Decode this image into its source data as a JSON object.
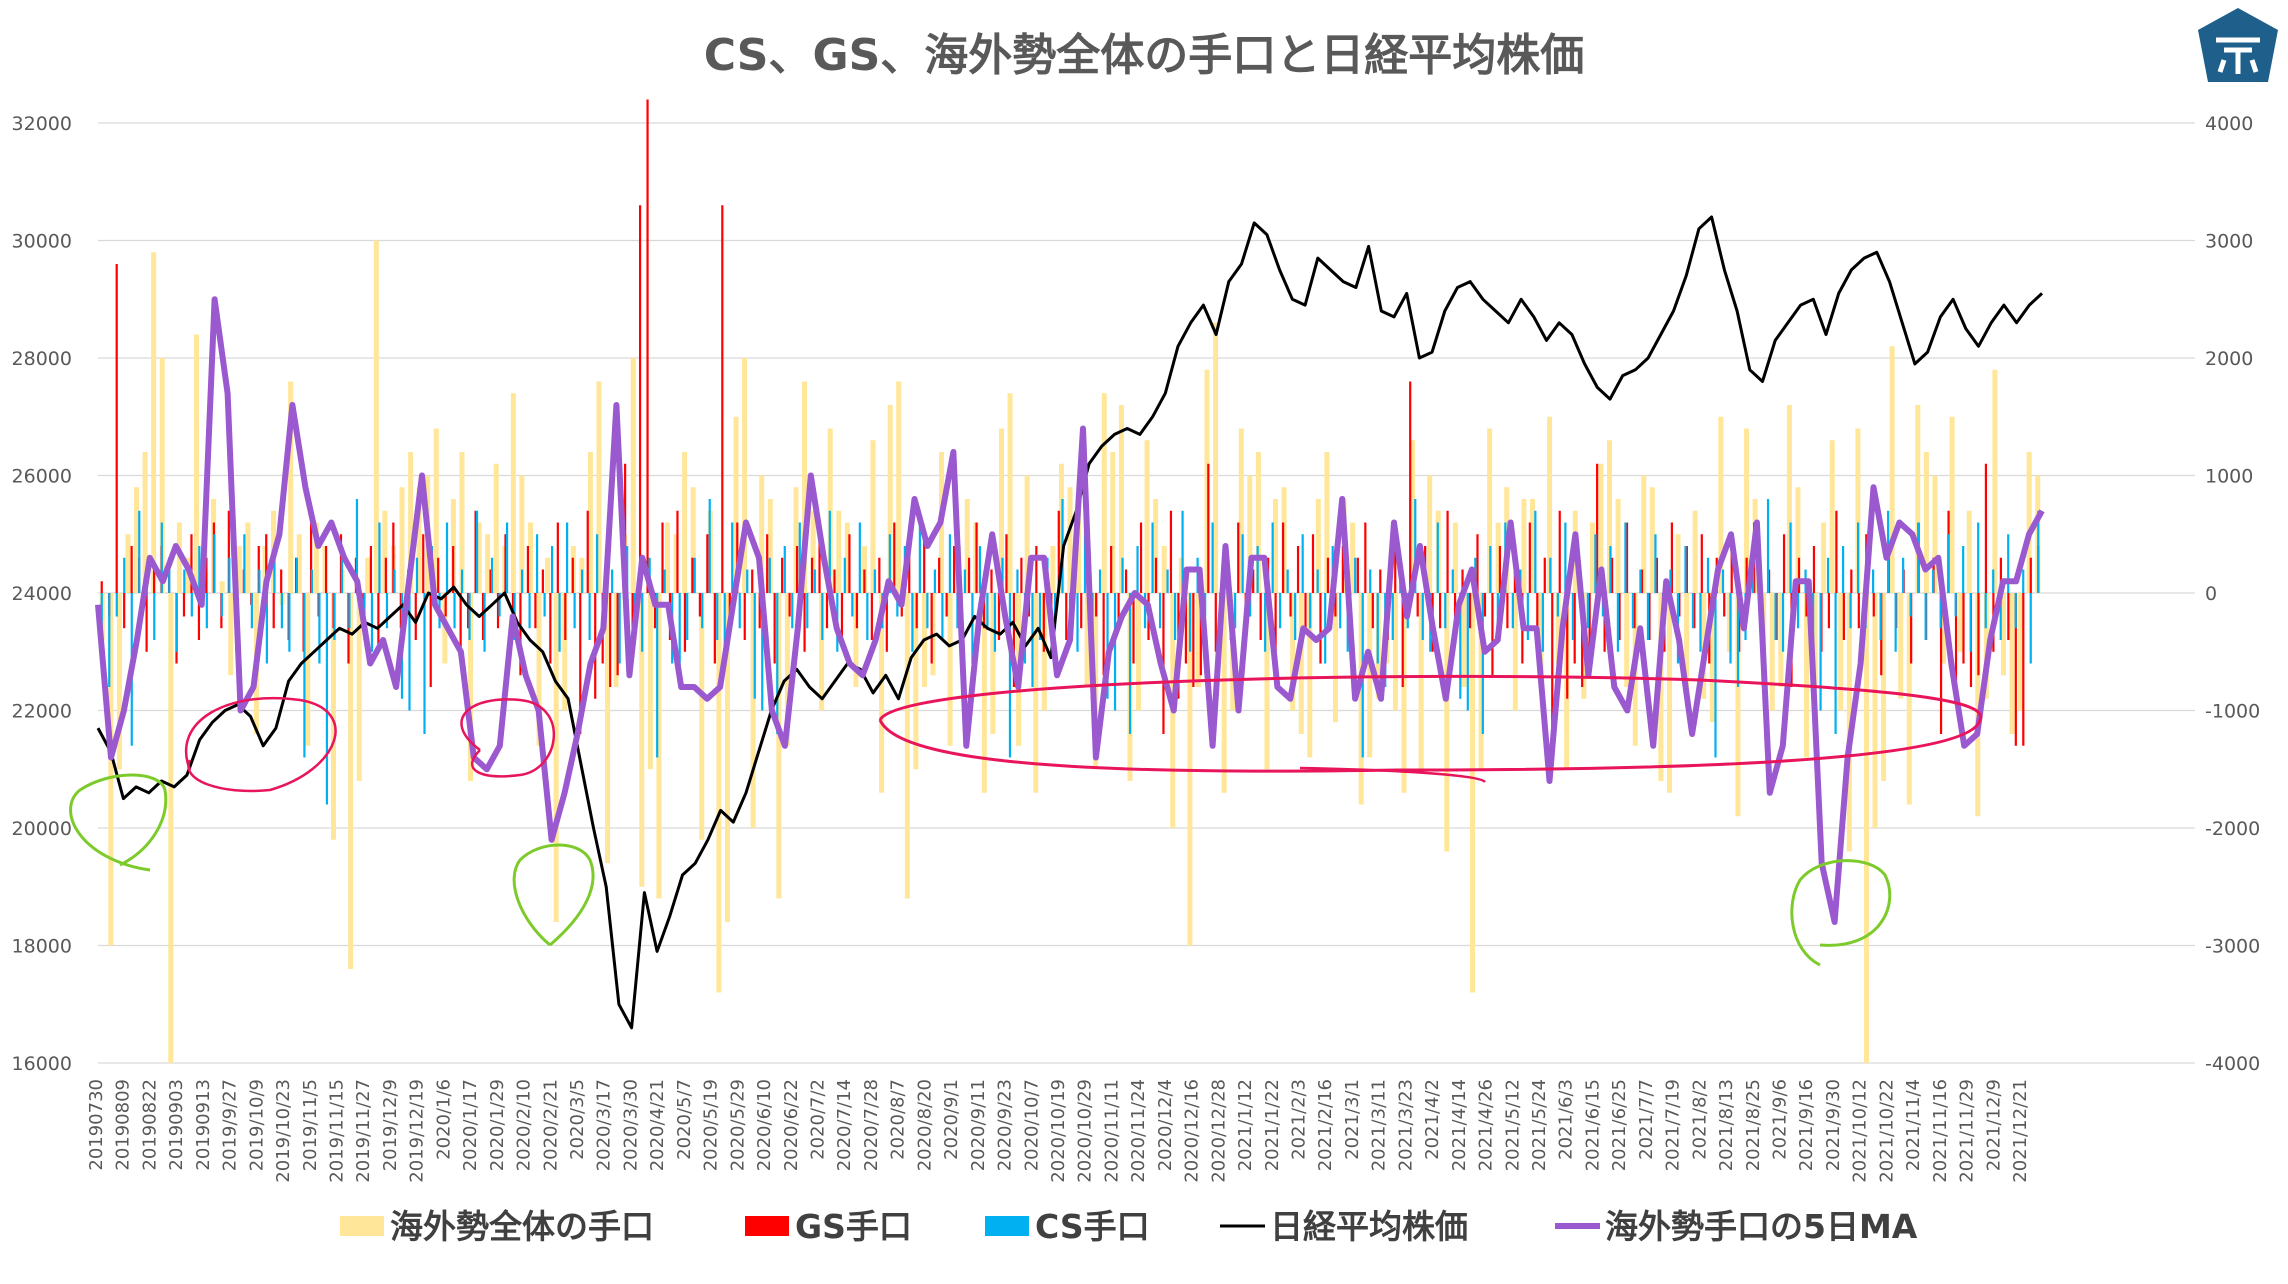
{
  "chart_data": {
    "type": "bar+line",
    "title": "CS、GS、海外勢全体の手口と日経平均株価",
    "y_left": {
      "min": 16000,
      "max": 32000,
      "ticks": [
        16000,
        18000,
        20000,
        22000,
        24000,
        26000,
        28000,
        30000,
        32000
      ]
    },
    "y_right": {
      "min": -4000,
      "max": 4000,
      "ticks": [
        -4000,
        -3000,
        -2000,
        -1000,
        0,
        1000,
        2000,
        3000,
        4000
      ]
    },
    "x_tick_labels": [
      "20190730",
      "20190809",
      "20190822",
      "20190903",
      "20190913",
      "2019/9/27",
      "2019/10/9",
      "2019/10/23",
      "2019/11/5",
      "2019/11/15",
      "2019/11/27",
      "2019/12/9",
      "2019/12/19",
      "2020/1/6",
      "2020/1/17",
      "2020/1/29",
      "2020/2/10",
      "2020/2/21",
      "2020/3/5",
      "2020/3/17",
      "2020/3/30",
      "2020/4/21",
      "2020/5/7",
      "2020/5/19",
      "2020/5/29",
      "2020/6/10",
      "2020/6/22",
      "2020/7/2",
      "2020/7/14",
      "2020/7/28",
      "2020/8/7",
      "2020/8/20",
      "2020/9/1",
      "2020/9/11",
      "2020/9/23",
      "2020/10/7",
      "2020/10/19",
      "2020/10/29",
      "2020/11/11",
      "2020/11/24",
      "2020/12/4",
      "2020/12/16",
      "2020/12/28",
      "2021/1/12",
      "2021/1/22",
      "2021/2/3",
      "2021/2/16",
      "2021/3/1",
      "2021/3/11",
      "2021/3/23",
      "2021/4/2",
      "2021/4/14",
      "2021/4/26",
      "2021/5/12",
      "2021/5/24",
      "2021/6/3",
      "2021/6/15",
      "2021/6/25",
      "2021/7/7",
      "2021/7/19",
      "2021/8/2",
      "2021/8/13",
      "2021/8/25",
      "2021/9/6",
      "2021/9/16",
      "2021/9/30",
      "2021/10/12",
      "2021/10/22",
      "2021/11/4",
      "2021/11/16",
      "2021/11/29",
      "2021/12/9",
      "2021/12/21"
    ],
    "series": [
      {
        "name": "海外勢全体の手口",
        "color": "#FFE699",
        "type": "bar",
        "axis": "right",
        "values": [
          -400,
          -3000,
          -1500,
          500,
          900,
          1200,
          2900,
          2000,
          -4000,
          600,
          300,
          2200,
          700,
          800,
          100,
          -700,
          400,
          600,
          -1200,
          400,
          700,
          -100,
          1800,
          500,
          -1300,
          600,
          400,
          -2100,
          200,
          -3200,
          -1600,
          300,
          3000,
          700,
          400,
          900,
          1200,
          900,
          1000,
          1400,
          -600,
          800,
          1200,
          -1600,
          600,
          500,
          1100,
          400,
          1700,
          1000,
          600,
          -1300,
          300,
          -2800,
          -1000,
          400,
          300,
          1200,
          1800,
          -2300,
          -800,
          500,
          2000,
          -2500,
          -1500,
          -2600,
          600,
          500,
          1200,
          900,
          -2100,
          700,
          -3400,
          -2800,
          1500,
          2000,
          -2000,
          1000,
          800,
          -2600,
          -1300,
          900,
          1800,
          700,
          -1000,
          1400,
          700,
          600,
          -800,
          400,
          1300,
          -1700,
          1600,
          1800,
          -2600,
          -1500,
          -800,
          -700,
          1200,
          -1300,
          400,
          800,
          600,
          -1700,
          -1200,
          1400,
          1700,
          -1300,
          1000,
          -1700,
          -1000,
          400,
          1100,
          900,
          700,
          -800,
          -1500,
          1700,
          1200,
          1600,
          -1600,
          -1000,
          1300,
          800,
          400,
          -2000,
          300,
          -3000,
          -800,
          1900,
          2300,
          -1700,
          -1000,
          1400,
          1000,
          1200,
          -1500,
          800,
          900,
          -1000,
          -1200,
          -1400,
          800,
          1200,
          -1100,
          800,
          600,
          -1800,
          -1400,
          -900,
          -600,
          -1000,
          -1700,
          1300,
          -1500,
          1000,
          700,
          -2200,
          600,
          -800,
          -3400,
          -1500,
          1400,
          600,
          900,
          -1000,
          800,
          800,
          -700,
          1500,
          -600,
          -1500,
          700,
          -900,
          600,
          1100,
          1300,
          800,
          -800,
          -1300,
          1000,
          900,
          -1600,
          -1700,
          500,
          -900,
          700,
          -900,
          -1100,
          1500,
          -500,
          -1900,
          1400,
          800,
          -800,
          -1000,
          -800,
          1600,
          900,
          -1400,
          -800,
          600,
          1300,
          -1000,
          -2200,
          1400,
          -4000,
          -2000,
          -1600,
          2100,
          -900,
          -1800,
          1600,
          1200,
          1000,
          -600,
          1500,
          -500,
          700,
          -1900,
          -900,
          1900,
          -700,
          -1200,
          -1000,
          1200,
          1000
        ]
      },
      {
        "name": "GS手口",
        "color": "#FF0000",
        "type": "bar",
        "axis": "right",
        "values": [
          100,
          -200,
          2800,
          -300,
          400,
          300,
          -500,
          200,
          400,
          300,
          -600,
          -200,
          500,
          -400,
          300,
          600,
          -300,
          700,
          -500,
          200,
          -100,
          400,
          500,
          -300,
          200,
          -400,
          300,
          -500,
          600,
          -200,
          400,
          -300,
          500,
          -600,
          300,
          -200,
          400,
          -500,
          300,
          600,
          -300,
          200,
          -400,
          500,
          -800,
          300,
          -200,
          400,
          -500,
          -300,
          700,
          -400,
          200,
          -300,
          500,
          -200,
          -700,
          400,
          -300,
          200,
          -600,
          600,
          -400,
          300,
          -1200,
          700,
          -900,
          -600,
          -800,
          -700,
          1100,
          -500,
          3300,
          4200,
          -300,
          600,
          -400,
          700,
          -500,
          300,
          -200,
          500,
          -600,
          3300,
          -300,
          600,
          -400,
          200,
          -300,
          500,
          -600,
          300,
          -200,
          400,
          -500,
          300,
          600,
          -300,
          200,
          -400,
          500,
          -300,
          200,
          -400,
          300,
          -500,
          600,
          -200,
          400,
          -300,
          500,
          -600,
          300,
          -200,
          400,
          -500,
          300,
          600,
          -300,
          200,
          -400,
          500,
          -800,
          300,
          -200,
          400,
          -500,
          -300,
          700,
          -400,
          200,
          -300,
          500,
          -200,
          -700,
          400,
          -300,
          200,
          -600,
          600,
          -400,
          300,
          -1200,
          700,
          -900,
          -600,
          -800,
          -700,
          1100,
          -500,
          300,
          -400,
          600,
          -300,
          200,
          -400,
          300,
          -500,
          600,
          -200,
          400,
          -300,
          500,
          -600,
          300,
          -200,
          400,
          -500,
          300,
          600,
          -300,
          200,
          -400,
          500,
          -800,
          1800,
          -200,
          400,
          -500,
          -300,
          700,
          -400,
          200,
          -300,
          500,
          -200,
          -700,
          400,
          -300,
          200,
          -600,
          600,
          -400,
          300,
          -1200,
          700,
          -900,
          -600,
          -800,
          -700,
          1100,
          -500,
          300,
          -400,
          600,
          -300,
          200,
          -400,
          300,
          -500,
          600,
          -200,
          400,
          -300,
          500,
          -600,
          300,
          -200,
          400,
          -500,
          300,
          600,
          -300,
          200,
          -400,
          500,
          -800,
          300,
          -200,
          400,
          -500,
          -300,
          700,
          -400,
          200,
          -300,
          500,
          -200,
          -700,
          400,
          -300,
          200,
          -600,
          600,
          -400,
          300,
          -1200,
          700,
          -900,
          -600,
          -800,
          -700,
          1100,
          -500,
          300,
          -400,
          -1300,
          -1300,
          300,
          400
        ]
      },
      {
        "name": "CS手口",
        "color": "#00B0F0",
        "type": "bar",
        "axis": "right",
        "values": [
          -600,
          -800,
          -200,
          300,
          -1300,
          700,
          200,
          -400,
          600,
          300,
          -500,
          200,
          -200,
          400,
          -300,
          500,
          -200,
          300,
          -400,
          500,
          -300,
          200,
          -600,
          400,
          -300,
          -500,
          300,
          -1400,
          200,
          -600,
          -1800,
          -400,
          300,
          -300,
          800,
          -400,
          -500,
          600,
          -300,
          200,
          -900,
          -1000,
          300,
          -1200,
          400,
          -300,
          600,
          -300,
          200,
          -400,
          700,
          -500,
          300,
          -200,
          600,
          -400,
          200,
          -300,
          500,
          -200,
          400,
          -500,
          600,
          -300,
          200,
          -400,
          500,
          -300,
          200,
          -600,
          400,
          -300,
          -500,
          300,
          -1400,
          200,
          -600,
          -800,
          -400,
          300,
          -300,
          800,
          -400,
          -500,
          600,
          -300,
          200,
          -900,
          -1000,
          300,
          -1200,
          400,
          -300,
          600,
          -300,
          200,
          -400,
          700,
          -500,
          300,
          -200,
          600,
          -400,
          200,
          -300,
          500,
          -200,
          400,
          -500,
          600,
          -300,
          200,
          -400,
          500,
          -300,
          200,
          -600,
          400,
          -300,
          -500,
          300,
          -1400,
          200,
          -600,
          -800,
          -400,
          300,
          -300,
          800,
          -400,
          -500,
          600,
          -300,
          200,
          -900,
          -1000,
          300,
          -1200,
          400,
          -300,
          600,
          -300,
          200,
          -400,
          700,
          -500,
          300,
          -200,
          600,
          -400,
          200,
          -300,
          500,
          -200,
          400,
          -500,
          600,
          -300,
          200,
          -400,
          500,
          -300,
          200,
          -600,
          400,
          -300,
          -500,
          300,
          -1400,
          200,
          -600,
          -800,
          -400,
          300,
          -300,
          800,
          -400,
          -500,
          600,
          -300,
          200,
          -900,
          -1000,
          300,
          -1200,
          400,
          -300,
          600,
          -300,
          200,
          -400,
          700,
          -500,
          300,
          -200,
          600,
          -400,
          200,
          -300,
          500,
          -200,
          400,
          -500,
          600,
          -300,
          200,
          -400,
          500,
          -300,
          200,
          -600,
          400,
          -300,
          -500,
          300,
          -1400,
          200,
          -600,
          -800,
          -400,
          300,
          -300,
          800,
          -400,
          -500,
          600,
          -300,
          200,
          -900,
          -1000,
          300,
          -1200,
          400,
          -300,
          600,
          -300,
          200,
          -400,
          700,
          -500,
          300,
          -200,
          600,
          -400,
          200,
          -300,
          500,
          -200,
          400,
          -500,
          600,
          -300,
          200,
          -400,
          500,
          -300,
          200,
          -600,
          700
        ]
      },
      {
        "name": "日経平均株価",
        "color": "#000000",
        "type": "line",
        "axis": "left",
        "values": [
          21700,
          21300,
          20500,
          20700,
          20600,
          20800,
          20700,
          20900,
          21500,
          21800,
          22000,
          22100,
          21900,
          21400,
          21700,
          22500,
          22800,
          23000,
          23200,
          23400,
          23300,
          23500,
          23400,
          23600,
          23800,
          23500,
          24000,
          23900,
          24100,
          23800,
          23600,
          23800,
          24000,
          23500,
          23200,
          23000,
          22500,
          22200,
          21100,
          20000,
          19000,
          17000,
          16600,
          18900,
          17900,
          18500,
          19200,
          19400,
          19800,
          20300,
          20100,
          20600,
          21300,
          22000,
          22500,
          22700,
          22400,
          22200,
          22500,
          22800,
          22700,
          22300,
          22600,
          22200,
          22900,
          23200,
          23300,
          23100,
          23200,
          23600,
          23400,
          23300,
          23500,
          23100,
          23400,
          22900,
          24800,
          25400,
          26200,
          26500,
          26700,
          26800,
          26700,
          27000,
          27400,
          28200,
          28600,
          28900,
          28400,
          29300,
          29600,
          30300,
          30100,
          29500,
          29000,
          28900,
          29700,
          29500,
          29300,
          29200,
          29900,
          28800,
          28700,
          29100,
          28000,
          28100,
          28800,
          29200,
          29300,
          29000,
          28800,
          28600,
          29000,
          28700,
          28300,
          28600,
          28400,
          27900,
          27500,
          27300,
          27700,
          27800,
          28000,
          28400,
          28800,
          29400,
          30200,
          30400,
          29500,
          28800,
          27800,
          27600,
          28300,
          28600,
          28900,
          29000,
          28400,
          29100,
          29500,
          29700,
          29800,
          29300,
          28600,
          27900,
          28100,
          28700,
          29000,
          28500,
          28200,
          28600,
          28900,
          28600,
          28900,
          29100
        ]
      },
      {
        "name": "海外勢手口の5日MA",
        "color": "#9B59D0",
        "type": "line",
        "axis": "right",
        "values": [
          -100,
          -1400,
          -1000,
          -400,
          300,
          100,
          400,
          200,
          -100,
          2500,
          1700,
          -1000,
          -800,
          100,
          500,
          1600,
          900,
          400,
          600,
          300,
          100,
          -600,
          -400,
          -800,
          100,
          1000,
          -100,
          -300,
          -500,
          -1400,
          -1500,
          -1300,
          -200,
          -700,
          -1000,
          -2100,
          -1700,
          -1200,
          -600,
          -300,
          1600,
          -700,
          300,
          -100,
          -100,
          -800,
          -800,
          -900,
          -800,
          -100,
          600,
          300,
          -1000,
          -1300,
          -300,
          1000,
          300,
          -300,
          -600,
          -700,
          -400,
          100,
          -100,
          800,
          400,
          600,
          1200,
          -1300,
          -200,
          500,
          -200,
          -800,
          300,
          300,
          -700,
          -400,
          1400,
          -1400,
          -500,
          -200,
          0,
          -100,
          -600,
          -1000,
          200,
          200,
          -1300,
          400,
          -1000,
          300,
          300,
          -800,
          -900,
          -300,
          -400,
          -300,
          800,
          -900,
          -500,
          -900,
          600,
          -200,
          400,
          -300,
          -900,
          -100,
          200,
          -500,
          -400,
          600,
          -300,
          -300,
          -1600,
          -300,
          500,
          -700,
          200,
          -800,
          -1000,
          -300,
          -1300,
          100,
          -400,
          -1200,
          -500,
          200,
          500,
          -300,
          600,
          -1700,
          -1300,
          100,
          100,
          -2300,
          -2800,
          -1400,
          -600,
          900,
          300,
          600,
          500,
          200,
          300,
          -600,
          -1300,
          -1200,
          -400,
          100,
          100,
          500,
          700
        ]
      }
    ],
    "legend_position": "bottom",
    "grid": true
  },
  "logo": {
    "lettering": "示"
  },
  "colors": {
    "axis_text": "#595959",
    "gridline": "#D9D9D9",
    "annotation_pink": "#E8155A",
    "annotation_green": "#7CCB2A",
    "logo_blue": "#1F5F8B"
  }
}
